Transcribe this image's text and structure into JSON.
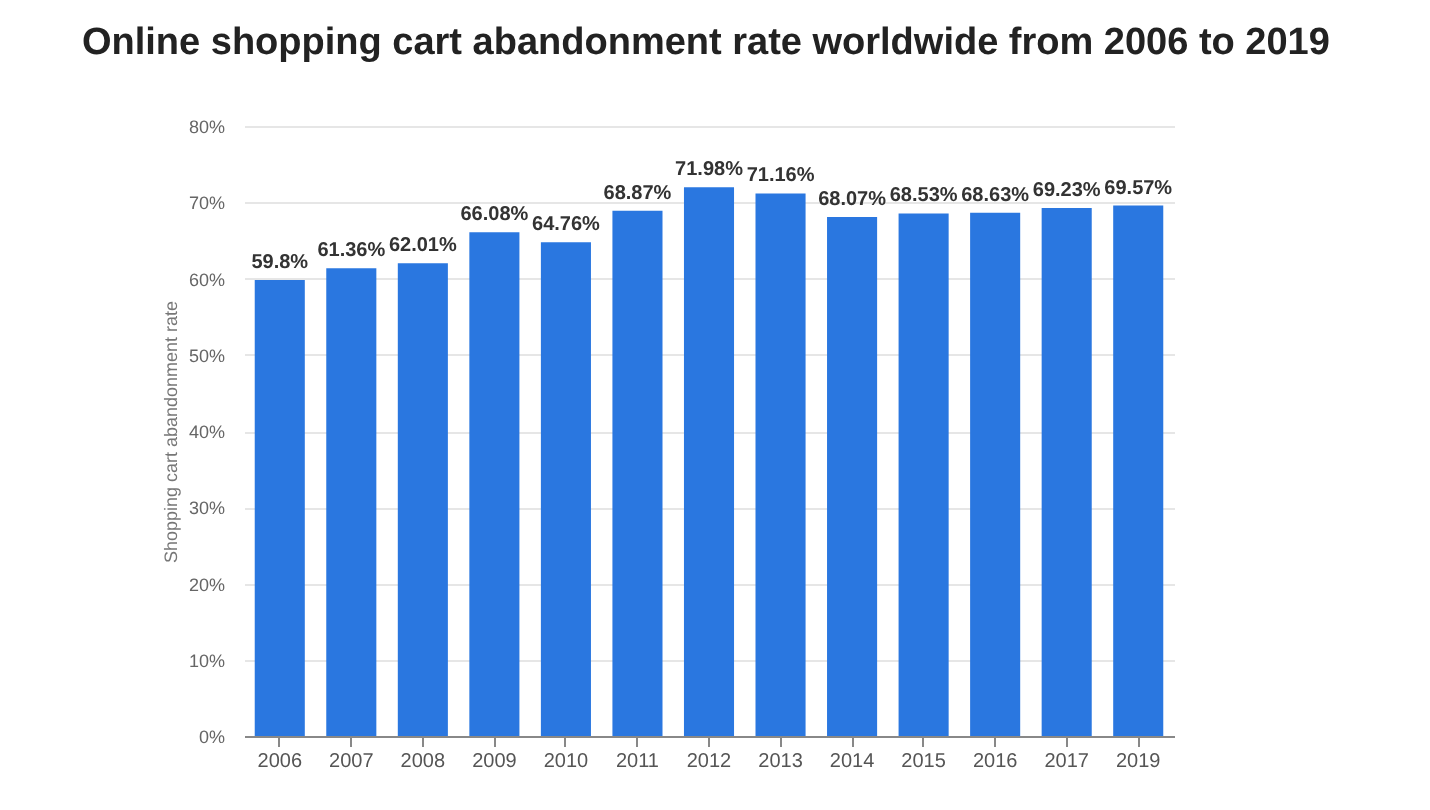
{
  "chart_data": {
    "type": "bar",
    "title": "Online shopping cart abandonment rate worldwide from 2006 to 2019",
    "ylabel": "Shopping cart abandonment rate",
    "categories": [
      "2006",
      "2007",
      "2008",
      "2009",
      "2010",
      "2011",
      "2012",
      "2013",
      "2014",
      "2015",
      "2016",
      "2017",
      "2019"
    ],
    "values": [
      59.8,
      61.36,
      62.01,
      66.08,
      64.76,
      68.87,
      71.98,
      71.16,
      68.07,
      68.53,
      68.63,
      69.23,
      69.57
    ],
    "value_labels": [
      "59.8%",
      "61.36%",
      "62.01%",
      "66.08%",
      "64.76%",
      "68.87%",
      "71.98%",
      "71.16%",
      "68.07%",
      "68.53%",
      "68.63%",
      "69.23%",
      "69.57%"
    ],
    "color": "#2a77e0",
    "ylim": [
      0,
      80
    ],
    "yticks": [
      {
        "value": 0,
        "label": "0%"
      },
      {
        "value": 10,
        "label": "10%"
      },
      {
        "value": 20,
        "label": "20%"
      },
      {
        "value": 30,
        "label": "30%"
      },
      {
        "value": 40,
        "label": "40%"
      },
      {
        "value": 50,
        "label": "50%"
      },
      {
        "value": 60,
        "label": "60%"
      },
      {
        "value": 70,
        "label": "70%"
      },
      {
        "value": 80,
        "label": "80%"
      }
    ],
    "grid": "y"
  }
}
